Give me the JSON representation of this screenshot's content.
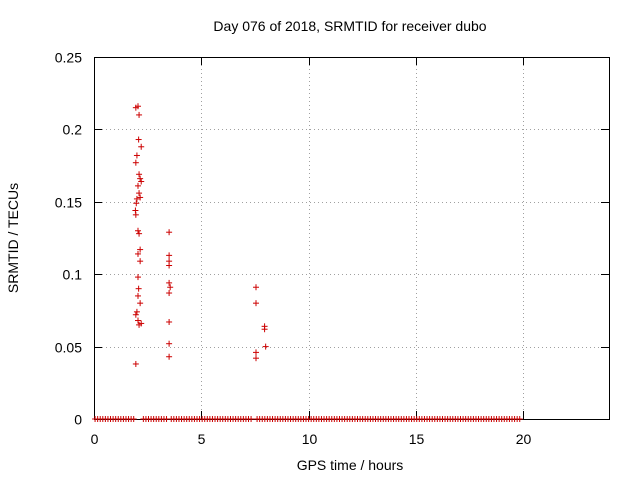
{
  "chart_data": {
    "type": "scatter",
    "title": "Day 076 of 2018, SRMTID for receiver dubo",
    "xlabel": "GPS time / hours",
    "ylabel": "SRMTID / TECUs",
    "xlim": [
      0,
      24
    ],
    "ylim": [
      0,
      0.25
    ],
    "xticks": [
      0,
      5,
      10,
      15,
      20
    ],
    "xtick_labels": [
      "0",
      "5",
      "10",
      "15",
      "20"
    ],
    "yticks": [
      0,
      0.05,
      0.1,
      0.15,
      0.2,
      0.25
    ],
    "ytick_labels": [
      "0",
      "0.05",
      "0.1",
      "0.15",
      "0.2",
      "0.25"
    ],
    "grid": true,
    "marker": "+",
    "color": "#cc0000",
    "series": [
      {
        "name": "SRMTID",
        "points": [
          [
            1.95,
            0.215
          ],
          [
            2.05,
            0.216
          ],
          [
            2.1,
            0.21
          ],
          [
            2.08,
            0.193
          ],
          [
            2.2,
            0.188
          ],
          [
            2.0,
            0.182
          ],
          [
            1.95,
            0.177
          ],
          [
            2.1,
            0.169
          ],
          [
            2.15,
            0.166
          ],
          [
            2.2,
            0.164
          ],
          [
            2.05,
            0.161
          ],
          [
            2.1,
            0.156
          ],
          [
            2.15,
            0.153
          ],
          [
            2.0,
            0.152
          ],
          [
            1.97,
            0.149
          ],
          [
            1.93,
            0.144
          ],
          [
            1.95,
            0.141
          ],
          [
            2.05,
            0.13
          ],
          [
            2.1,
            0.128
          ],
          [
            2.15,
            0.117
          ],
          [
            2.05,
            0.114
          ],
          [
            2.15,
            0.109
          ],
          [
            2.05,
            0.098
          ],
          [
            2.08,
            0.09
          ],
          [
            2.05,
            0.085
          ],
          [
            2.15,
            0.08
          ],
          [
            2.0,
            0.074
          ],
          [
            1.95,
            0.072
          ],
          [
            2.05,
            0.068
          ],
          [
            2.1,
            0.065
          ],
          [
            2.2,
            0.066
          ],
          [
            1.95,
            0.038
          ],
          [
            3.5,
            0.129
          ],
          [
            3.5,
            0.113
          ],
          [
            3.5,
            0.109
          ],
          [
            3.5,
            0.106
          ],
          [
            3.5,
            0.094
          ],
          [
            3.55,
            0.091
          ],
          [
            3.5,
            0.087
          ],
          [
            3.5,
            0.067
          ],
          [
            3.5,
            0.052
          ],
          [
            3.5,
            0.043
          ],
          [
            7.55,
            0.091
          ],
          [
            7.55,
            0.08
          ],
          [
            7.95,
            0.064
          ],
          [
            7.95,
            0.062
          ],
          [
            8.0,
            0.05
          ],
          [
            7.55,
            0.046
          ],
          [
            7.55,
            0.042
          ]
        ]
      }
    ],
    "zero_band": {
      "y": 0,
      "x_ranges": [
        [
          0.05,
          1.9
        ],
        [
          2.3,
          3.4
        ],
        [
          3.6,
          7.4
        ],
        [
          7.6,
          19.9
        ]
      ],
      "step": 0.12
    }
  }
}
